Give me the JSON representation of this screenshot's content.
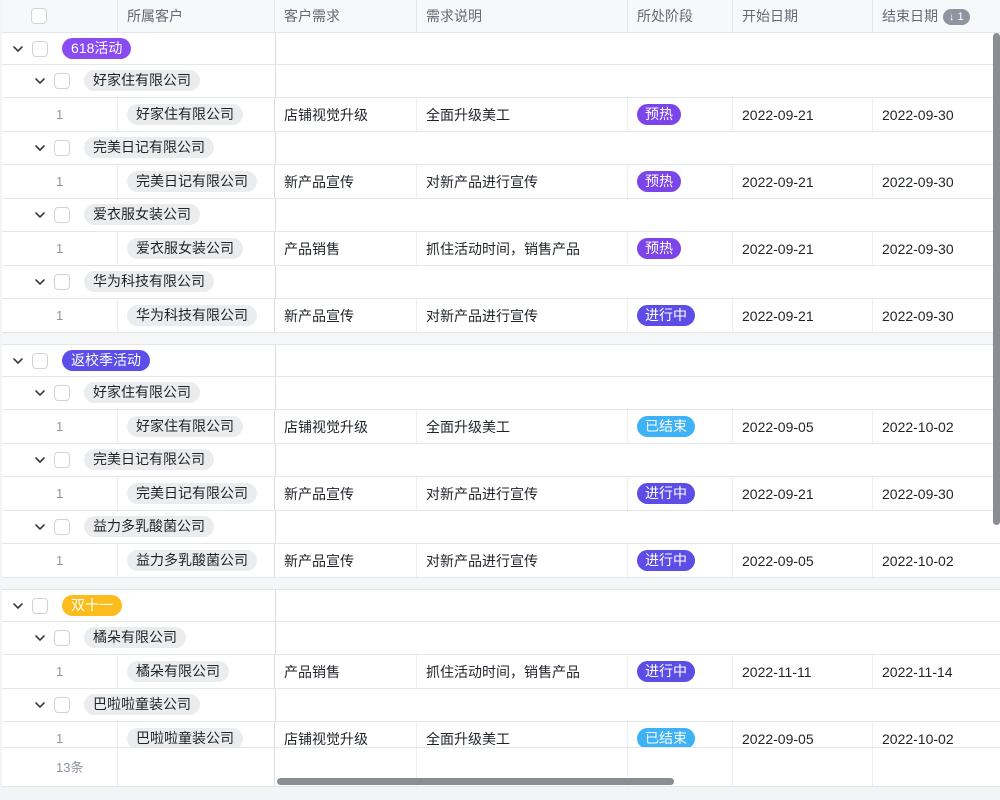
{
  "columns": {
    "customer": "所属客户",
    "demand": "客户需求",
    "description": "需求说明",
    "stage": "所处阶段",
    "start": "开始日期",
    "end": "结束日期",
    "end_sort_badge": "↓ 1"
  },
  "footer": {
    "count": "13条"
  },
  "colors": {
    "stage": {
      "预热": "#7b45ea",
      "进行中": "#5b4de6",
      "已结束": "#3eb2f6"
    }
  },
  "groups": [
    {
      "label": "618活动",
      "color": "#8a4cf0",
      "subgroups": [
        {
          "company": "好家住有限公司",
          "rows": [
            {
              "index": "1",
              "customer": "好家住有限公司",
              "demand": "店铺视觉升级",
              "description": "全面升级美工",
              "stage": "预热",
              "start": "2022-09-21",
              "end": "2022-09-30"
            }
          ]
        },
        {
          "company": "完美日记有限公司",
          "rows": [
            {
              "index": "1",
              "customer": "完美日记有限公司",
              "demand": "新产品宣传",
              "description": "对新产品进行宣传",
              "stage": "预热",
              "start": "2022-09-21",
              "end": "2022-09-30"
            }
          ]
        },
        {
          "company": "爱衣服女装公司",
          "rows": [
            {
              "index": "1",
              "customer": "爱衣服女装公司",
              "demand": "产品销售",
              "description": "抓住活动时间，销售产品",
              "stage": "预热",
              "start": "2022-09-21",
              "end": "2022-09-30"
            }
          ]
        },
        {
          "company": "华为科技有限公司",
          "rows": [
            {
              "index": "1",
              "customer": "华为科技有限公司",
              "demand": "新产品宣传",
              "description": "对新产品进行宣传",
              "stage": "进行中",
              "start": "2022-09-21",
              "end": "2022-09-30"
            }
          ]
        }
      ]
    },
    {
      "label": "返校季活动",
      "color": "#5c4ee8",
      "subgroups": [
        {
          "company": "好家住有限公司",
          "rows": [
            {
              "index": "1",
              "customer": "好家住有限公司",
              "demand": "店铺视觉升级",
              "description": "全面升级美工",
              "stage": "已结束",
              "start": "2022-09-05",
              "end": "2022-10-02"
            }
          ]
        },
        {
          "company": "完美日记有限公司",
          "rows": [
            {
              "index": "1",
              "customer": "完美日记有限公司",
              "demand": "新产品宣传",
              "description": "对新产品进行宣传",
              "stage": "进行中",
              "start": "2022-09-21",
              "end": "2022-09-30"
            }
          ]
        },
        {
          "company": "益力多乳酸菌公司",
          "rows": [
            {
              "index": "1",
              "customer": "益力多乳酸菌公司",
              "demand": "新产品宣传",
              "description": "对新产品进行宣传",
              "stage": "进行中",
              "start": "2022-09-05",
              "end": "2022-10-02"
            }
          ]
        }
      ]
    },
    {
      "label": "双十一",
      "color": "#fbbd1e",
      "subgroups": [
        {
          "company": "橘朵有限公司",
          "rows": [
            {
              "index": "1",
              "customer": "橘朵有限公司",
              "demand": "产品销售",
              "description": "抓住活动时间，销售产品",
              "stage": "进行中",
              "start": "2022-11-11",
              "end": "2022-11-14"
            }
          ]
        },
        {
          "company": "巴啦啦童装公司",
          "rows": [
            {
              "index": "1",
              "customer": "巴啦啦童装公司",
              "demand": "店铺视觉升级",
              "description": "全面升级美工",
              "stage": "已结束",
              "start": "2022-09-05",
              "end": "2022-10-02"
            }
          ]
        }
      ]
    }
  ]
}
